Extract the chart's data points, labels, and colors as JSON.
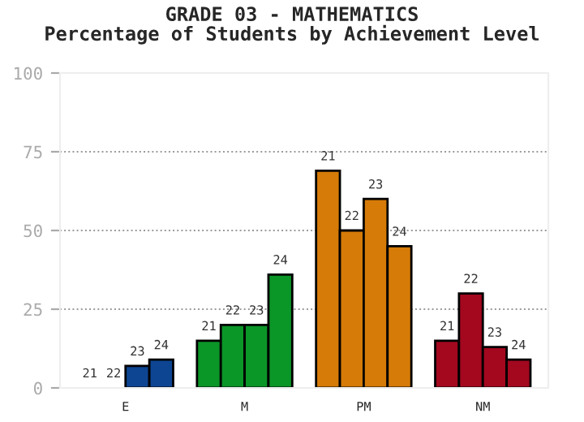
{
  "chart_data": {
    "type": "bar",
    "title": "GRADE 03 - MATHEMATICS\nPercentage of Students by Achievement Level",
    "categories": [
      "E",
      "M",
      "PM",
      "NM"
    ],
    "series": [
      {
        "name": "21",
        "colors": [
          "#0d4592",
          "#0b9628",
          "#d67b08",
          "#a3081f"
        ],
        "values": [
          0,
          15,
          69,
          15
        ]
      },
      {
        "name": "22",
        "colors": [
          "#0d4592",
          "#0b9628",
          "#d67b08",
          "#a3081f"
        ],
        "values": [
          0,
          20,
          50,
          30
        ]
      },
      {
        "name": "23",
        "colors": [
          "#0d4592",
          "#0b9628",
          "#d67b08",
          "#a3081f"
        ],
        "values": [
          7,
          20,
          60,
          13
        ]
      },
      {
        "name": "24",
        "colors": [
          "#0d4592",
          "#0b9628",
          "#d67b08",
          "#a3081f"
        ],
        "values": [
          9,
          36,
          45,
          9
        ]
      }
    ],
    "ylim": [
      0,
      100
    ],
    "yticks": [
      0,
      25,
      50,
      75,
      100
    ],
    "grid": "y",
    "legend": false
  }
}
